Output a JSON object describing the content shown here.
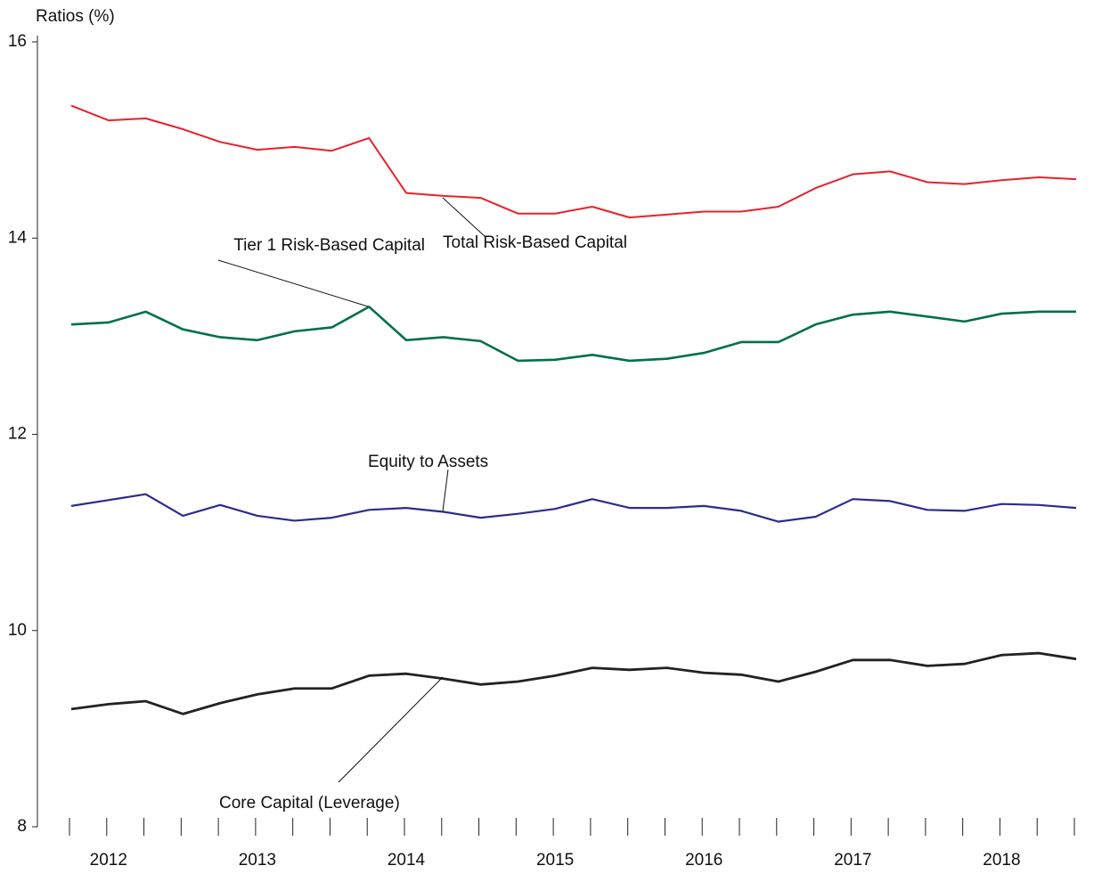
{
  "chart_data": {
    "type": "line",
    "y_label": "Ratios (%)",
    "categories": [
      null,
      "2012",
      null,
      null,
      null,
      "2013",
      null,
      null,
      null,
      "2014",
      null,
      null,
      null,
      "2015",
      null,
      null,
      null,
      "2016",
      null,
      null,
      null,
      "2017",
      null,
      null,
      null,
      "2018",
      null,
      null
    ],
    "ylim": [
      8,
      16
    ],
    "yticks": [
      8,
      10,
      12,
      14,
      16
    ],
    "series": [
      {
        "name": "Total Risk-Based Capital",
        "color": "#e8212b",
        "values": [
          15.35,
          15.2,
          15.22,
          15.11,
          14.98,
          14.9,
          14.93,
          14.89,
          15.02,
          14.46,
          14.43,
          14.41,
          14.25,
          14.25,
          14.32,
          14.21,
          14.24,
          14.27,
          14.27,
          14.32,
          14.51,
          14.65,
          14.68,
          14.57,
          14.55,
          14.59,
          14.62,
          14.6
        ]
      },
      {
        "name": "Tier 1 Risk-Based Capital",
        "color": "#00704a",
        "values": [
          13.12,
          13.14,
          13.25,
          13.07,
          12.99,
          12.96,
          13.05,
          13.09,
          13.3,
          12.96,
          12.99,
          12.95,
          12.75,
          12.76,
          12.81,
          12.75,
          12.77,
          12.83,
          12.94,
          12.94,
          13.12,
          13.22,
          13.25,
          13.2,
          13.15,
          13.23,
          13.25,
          13.25
        ]
      },
      {
        "name": "Equity to Assets",
        "color": "#2b2c8c",
        "values": [
          11.27,
          11.33,
          11.39,
          11.17,
          11.28,
          11.17,
          11.12,
          11.15,
          11.23,
          11.25,
          11.21,
          11.15,
          11.19,
          11.24,
          11.34,
          11.25,
          11.25,
          11.27,
          11.22,
          11.11,
          11.16,
          11.34,
          11.32,
          11.23,
          11.22,
          11.29,
          11.28,
          11.25
        ]
      },
      {
        "name": "Core Capital (Leverage)",
        "color": "#222222",
        "values": [
          9.2,
          9.25,
          9.28,
          9.15,
          9.26,
          9.35,
          9.41,
          9.41,
          9.54,
          9.56,
          9.51,
          9.45,
          9.48,
          9.54,
          9.62,
          9.6,
          9.62,
          9.57,
          9.55,
          9.48,
          9.58,
          9.7,
          9.7,
          9.64,
          9.66,
          9.75,
          9.77,
          9.71
        ]
      }
    ]
  }
}
